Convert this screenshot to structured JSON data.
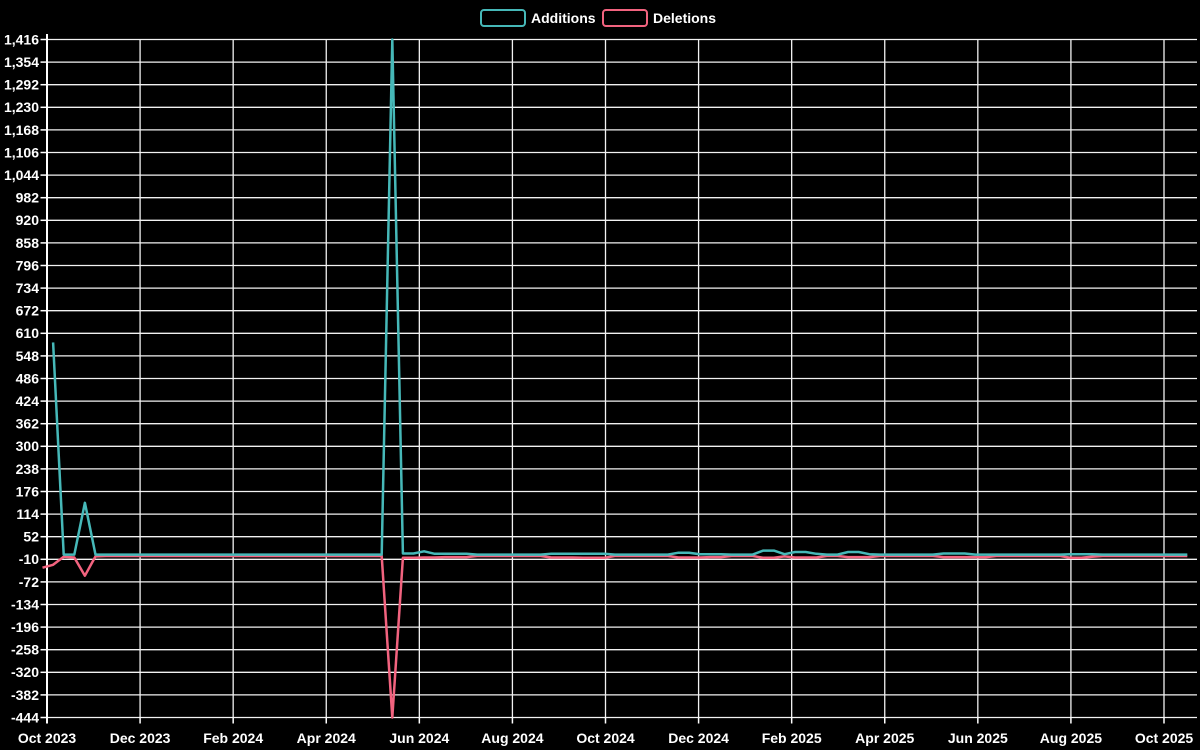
{
  "chart_data": {
    "type": "line",
    "title": "",
    "legend_position": "top-center",
    "grid": true,
    "background_color": "#000000",
    "grid_color": "#f2f2f2",
    "text_color": "#ffffff",
    "legend": [
      {
        "name": "Additions",
        "color": "#46b8b8"
      },
      {
        "name": "Deletions",
        "color": "#f2637f"
      }
    ],
    "x_axis": {
      "start": "Oct 2023",
      "end": "Oct 2025",
      "interval": "weekly points, tick every 2 months",
      "tick_labels": [
        "Oct 2023",
        "Dec 2023",
        "Feb 2024",
        "Apr 2024",
        "Jun 2024",
        "Aug 2024",
        "Oct 2024",
        "Dec 2024",
        "Feb 2025",
        "Apr 2025",
        "Jun 2025",
        "Aug 2025",
        "Oct 2025"
      ]
    },
    "y_axis": {
      "min": -444,
      "max": 1416,
      "step": 62,
      "tick_labels": [
        "1,416",
        "1,354",
        "1,292",
        "1,230",
        "1,168",
        "1,106",
        "1,044",
        "982",
        "920",
        "858",
        "796",
        "734",
        "672",
        "610",
        "548",
        "486",
        "424",
        "362",
        "300",
        "238",
        "176",
        "114",
        "52",
        "-10",
        "-72",
        "-134",
        "-196",
        "-258",
        "-320",
        "-382",
        "-444"
      ]
    },
    "series": [
      {
        "name": "Additions",
        "color": "#46b8b8",
        "peak": 1416,
        "values": [
          null,
          585,
          3,
          3,
          145,
          3,
          3,
          3,
          3,
          3,
          3,
          3,
          3,
          3,
          3,
          3,
          3,
          3,
          3,
          3,
          3,
          3,
          3,
          3,
          3,
          3,
          3,
          3,
          3,
          3,
          3,
          3,
          3,
          1416,
          6,
          6,
          12,
          5,
          5,
          5,
          5,
          3,
          3,
          3,
          3,
          3,
          3,
          3,
          5,
          5,
          5,
          5,
          5,
          5,
          3,
          3,
          3,
          3,
          3,
          3,
          8,
          8,
          4,
          4,
          4,
          3,
          3,
          3,
          14,
          14,
          4,
          10,
          10,
          5,
          3,
          3,
          10,
          10,
          4,
          3,
          3,
          3,
          3,
          3,
          3,
          6,
          6,
          6,
          3,
          3,
          3,
          3,
          3,
          3,
          3,
          3,
          3,
          4,
          4,
          4,
          3,
          3,
          3,
          3,
          3,
          3,
          3,
          3,
          3
        ]
      },
      {
        "name": "Deletions",
        "color": "#f2637f",
        "peak": -444,
        "values": [
          -33,
          -25,
          -3,
          -5,
          -55,
          -2,
          -1,
          -1,
          -1,
          -1,
          -1,
          -1,
          -1,
          -1,
          -1,
          -1,
          -1,
          -1,
          -1,
          -1,
          -1,
          -1,
          -1,
          -1,
          -1,
          -1,
          -1,
          -1,
          -1,
          -1,
          -1,
          -1,
          -1,
          -444,
          -6,
          -6,
          -5,
          -5,
          -4,
          -4,
          -4,
          -1,
          -1,
          -1,
          -1,
          -1,
          -1,
          -1,
          -5,
          -5,
          -5,
          -6,
          -6,
          -6,
          -1,
          -1,
          -1,
          -1,
          -1,
          -1,
          -5,
          -5,
          -5,
          -4,
          -4,
          -1,
          -1,
          -1,
          -6,
          -6,
          -2,
          -5,
          -5,
          -5,
          -1,
          -1,
          -4,
          -4,
          -4,
          -1,
          -1,
          -1,
          -1,
          -1,
          -1,
          -4,
          -4,
          -4,
          -4,
          -4,
          -1,
          -1,
          -1,
          -1,
          -1,
          -1,
          -1,
          -6,
          -6,
          -3,
          -1,
          -1,
          -1,
          -1,
          -1,
          -1,
          -1,
          -1,
          -1
        ]
      }
    ]
  }
}
